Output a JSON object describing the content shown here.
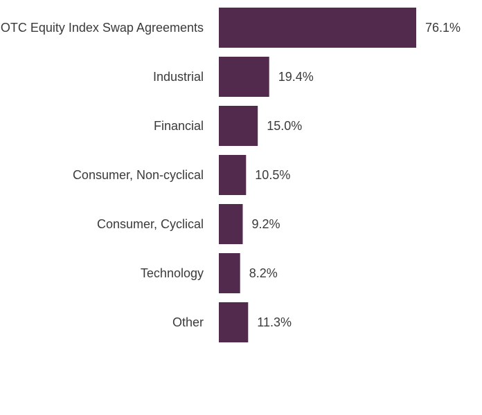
{
  "chart_data": {
    "type": "bar",
    "orientation": "horizontal",
    "title": "",
    "xlabel": "",
    "ylabel": "",
    "categories": [
      "OTC Equity Index Swap Agreements",
      "Industrial",
      "Financial",
      "Consumer, Non-cyclical",
      "Consumer, Cyclical",
      "Technology",
      "Other"
    ],
    "values": [
      76.1,
      19.4,
      15.0,
      10.5,
      9.2,
      8.2,
      11.3
    ],
    "value_labels": [
      "76.1%",
      "19.4%",
      "15.0%",
      "10.5%",
      "9.2%",
      "8.2%",
      "11.3%"
    ],
    "unit": "%",
    "xlim": [
      0,
      76.1
    ],
    "grid": false,
    "legend": "none",
    "bar_color": "#522a4d"
  }
}
